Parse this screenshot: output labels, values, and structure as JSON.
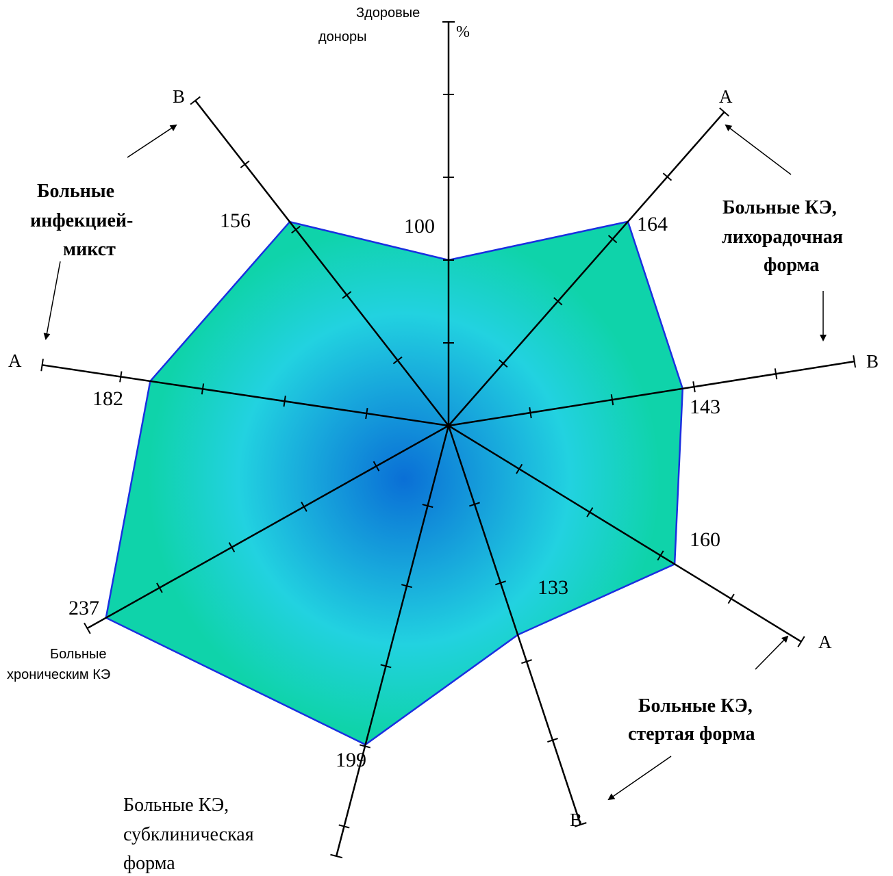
{
  "chart_data": {
    "type": "radar",
    "unit": "%",
    "reference_axis": {
      "label": [
        "Здоровые",
        "доноры"
      ],
      "value": 100
    },
    "axes": [
      {
        "label": "Здоровые доноры",
        "end_label": "",
        "value": 100
      },
      {
        "label": "Больные КЭ, лихорадочная форма",
        "end_label": "A",
        "value": 164
      },
      {
        "label": "Больные КЭ, лихорадочная форма",
        "end_label": "B",
        "value": 143
      },
      {
        "label": "Больные КЭ, стертая форма",
        "end_label": "A",
        "value": 160
      },
      {
        "label": "Больные КЭ, стертая форма",
        "end_label": "B",
        "value": 133
      },
      {
        "label": "Больные КЭ, субклиническая форма",
        "end_label": "",
        "value": 199
      },
      {
        "label": "Больные хроническим КЭ",
        "end_label": "",
        "value": 237
      },
      {
        "label": "Больные инфекцией-микст",
        "end_label": "A",
        "value": 182
      },
      {
        "label": "Больные инфекцией-микст",
        "end_label": "B",
        "value": 156
      }
    ],
    "group_labels": {
      "fever": [
        "Больные  КЭ,",
        "лихорадочная",
        "форма"
      ],
      "erased": [
        "Больные  КЭ,",
        "стертая форма"
      ],
      "subclinical": [
        "Больные КЭ,",
        "субклиническая",
        "форма"
      ],
      "chronic": [
        "Больные",
        "хроническим КЭ"
      ],
      "mixed": [
        "Больные",
        "инфекцией-",
        "микст"
      ]
    },
    "colors": {
      "fill_edge": "#0fd3aa",
      "fill_mid": "#22d2e0",
      "fill_center": "#0a6fd6",
      "outline": "#1a2fe0"
    }
  }
}
